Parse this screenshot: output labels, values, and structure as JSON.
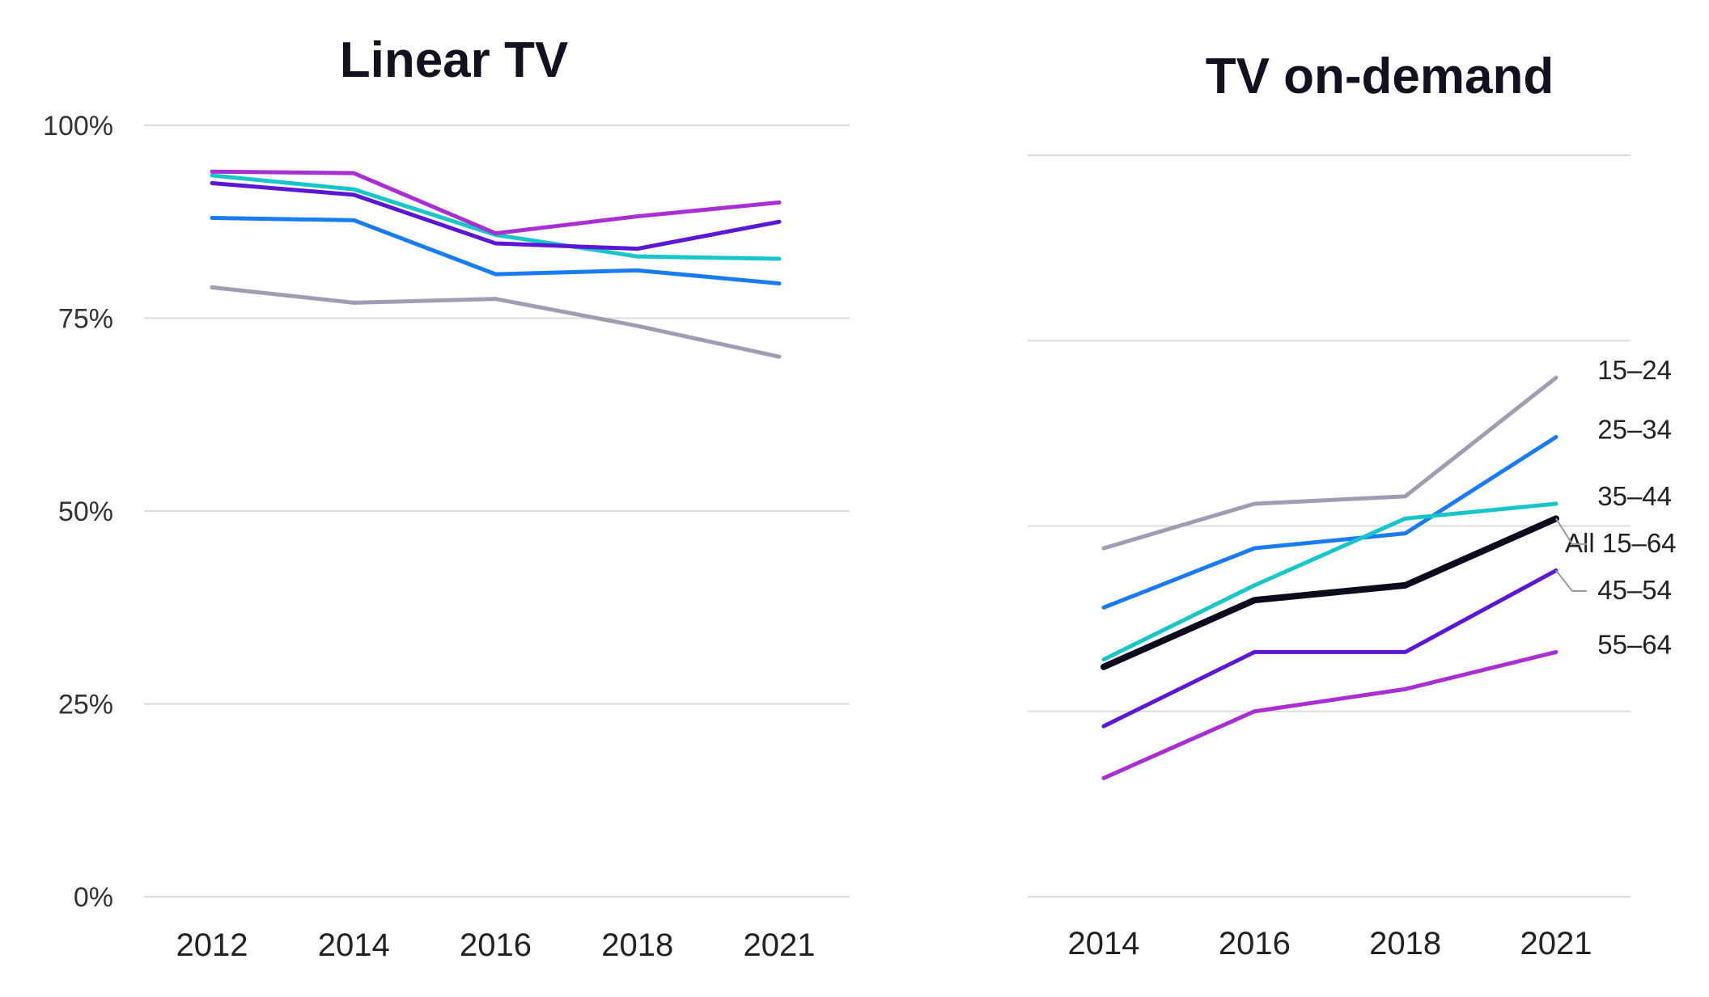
{
  "chart_data": [
    {
      "type": "line",
      "title": "Linear TV",
      "xlabel": "",
      "ylabel": "",
      "ylim": [
        0,
        100
      ],
      "yticks": [
        "0%",
        "25%",
        "50%",
        "75%",
        "100%"
      ],
      "ytick_values": [
        0,
        25,
        50,
        75,
        100
      ],
      "categories": [
        "2012",
        "2014",
        "2016",
        "2018",
        "2021"
      ],
      "grid": true,
      "legend": "none",
      "series": [
        {
          "name": "15–24",
          "color": "#a09cb4",
          "values": [
            79,
            77,
            77.5,
            74,
            70
          ]
        },
        {
          "name": "25–34",
          "color": "#1a7cf5",
          "values": [
            88,
            87.7,
            80.7,
            81.2,
            79.5
          ]
        },
        {
          "name": "35–44",
          "color": "#17c6c8",
          "values": [
            93.5,
            91.7,
            85.8,
            83,
            82.7
          ]
        },
        {
          "name": "45–54",
          "color": "#5b16d6",
          "values": [
            92.5,
            91,
            84.7,
            84,
            87.5
          ]
        },
        {
          "name": "55–64",
          "color": "#a92ed3",
          "values": [
            94,
            93.8,
            86,
            88.2,
            90
          ]
        }
      ]
    },
    {
      "type": "line",
      "title": "TV on-demand",
      "xlabel": "",
      "ylabel": "",
      "ylim": [
        0,
        100
      ],
      "categories": [
        "2014",
        "2016",
        "2018",
        "2021"
      ],
      "grid": true,
      "legend": "direct labels at right end",
      "series": [
        {
          "name": "15–24",
          "color": "#a09cb4",
          "values": [
            47,
            53,
            54,
            70
          ]
        },
        {
          "name": "25–34",
          "color": "#1a7cf5",
          "values": [
            39,
            47,
            49,
            62
          ]
        },
        {
          "name": "35–44",
          "color": "#17c6c8",
          "values": [
            32,
            42,
            51,
            53
          ]
        },
        {
          "name": "All 15–64",
          "color": "#0b0b1e",
          "values": [
            31,
            40,
            42,
            51
          ]
        },
        {
          "name": "45–54",
          "color": "#5b16d6",
          "values": [
            23,
            33,
            33,
            44
          ]
        },
        {
          "name": "55–64",
          "color": "#a92ed3",
          "values": [
            16,
            25,
            28,
            33
          ]
        }
      ]
    }
  ]
}
